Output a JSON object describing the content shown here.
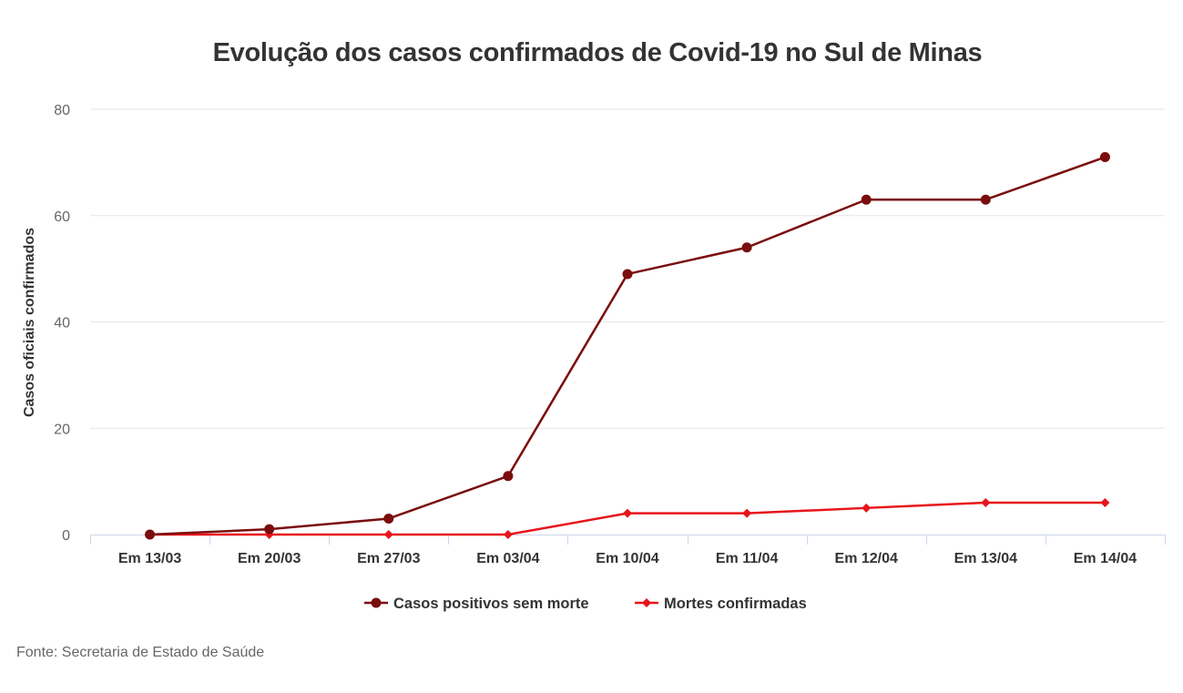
{
  "chart_data": {
    "type": "line",
    "title": "Evolução dos casos confirmados de Covid-19 no Sul de Minas",
    "xlabel": "",
    "ylabel": "Casos oficiais confirmados",
    "categories": [
      "Em 13/03",
      "Em 20/03",
      "Em 27/03",
      "Em 03/04",
      "Em 10/04",
      "Em 11/04",
      "Em 12/04",
      "Em 13/04",
      "Em 14/04"
    ],
    "ylim": [
      0,
      80
    ],
    "yticks": [
      "0",
      "20",
      "40",
      "60",
      "80"
    ],
    "grid": true,
    "legend_position": "bottom",
    "series": [
      {
        "name": "Casos positivos sem morte",
        "values": [
          0,
          1,
          3,
          11,
          49,
          54,
          63,
          63,
          71
        ],
        "color": "#7a0d0d",
        "marker": "circle"
      },
      {
        "name": "Mortes confirmadas",
        "values": [
          0,
          0,
          0,
          0,
          4,
          4,
          5,
          6,
          6
        ],
        "color": "#e8141b",
        "marker": "diamond"
      }
    ]
  },
  "source": "Fonte: Secretaria de Estado de Saúde"
}
